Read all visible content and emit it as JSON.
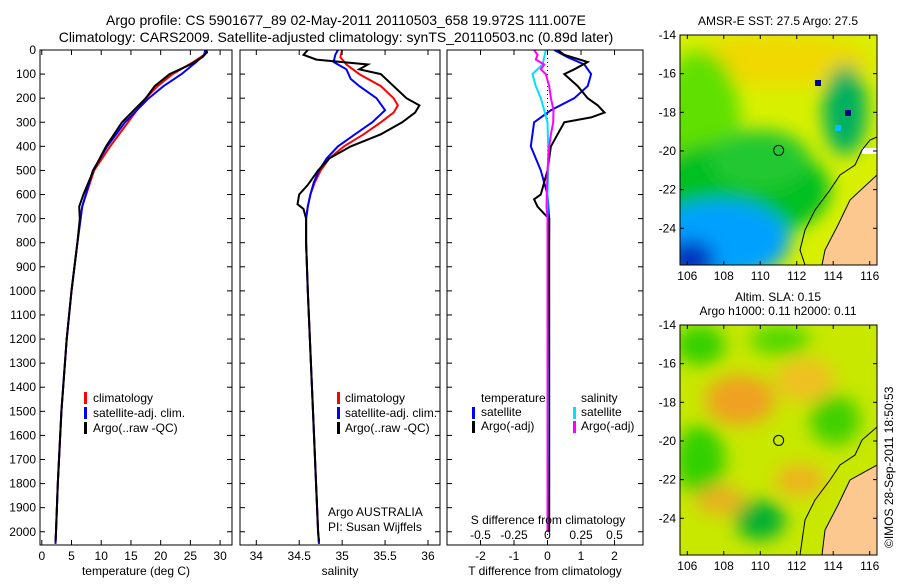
{
  "title": {
    "line1": "Argo profile: CS 5901677_89 02-May-2011 20110503_658 19.972S 111.007E",
    "line2": "Climatology: CARS2009. Satellite-adjusted climatology: synTS_20110503.nc (0.89d later)"
  },
  "credit": "©IMOS 28-Sep-2011 18:50:53",
  "chart_data": [
    {
      "type": "line",
      "id": "temperature",
      "xlabel": "temperature (deg C)",
      "ylabel": "",
      "xlim": [
        -0.3,
        32
      ],
      "ylim": [
        2055,
        0
      ],
      "xticks": [
        0,
        5,
        10,
        15,
        20,
        25,
        30
      ],
      "yticks": [
        0,
        100,
        200,
        300,
        400,
        500,
        600,
        700,
        800,
        900,
        1000,
        1100,
        1200,
        1300,
        1400,
        1500,
        1600,
        1700,
        1800,
        1900,
        2000
      ],
      "legend": [
        "climatology",
        "satellite-adj. clim.",
        "Argo(..raw -QC)"
      ],
      "legend_placement": "lower-center",
      "series": [
        {
          "name": "climatology",
          "color": "#ff0000",
          "depth": [
            0,
            20,
            50,
            100,
            150,
            200,
            250,
            300,
            400,
            500,
            650,
            800,
            1000,
            1200,
            1500,
            1800,
            2000,
            2050
          ],
          "values": [
            27.6,
            27.3,
            25.5,
            22,
            19.5,
            17.5,
            16,
            14.5,
            11.5,
            8.8,
            6.8,
            6,
            5,
            4.2,
            3.3,
            2.7,
            2.4,
            2.3
          ]
        },
        {
          "name": "satellite-adj. clim.",
          "color": "#0000ff",
          "depth": [
            0,
            20,
            50,
            100,
            150,
            200,
            250,
            300,
            400,
            500,
            650,
            800,
            1000,
            1200,
            1500,
            1800,
            2000,
            2050
          ],
          "values": [
            27.5,
            27.3,
            26,
            23.5,
            20.5,
            18,
            16,
            14,
            11,
            8.6,
            6.8,
            6,
            5,
            4.2,
            3.3,
            2.7,
            2.4,
            2.3
          ]
        },
        {
          "name": "Argo(..raw -QC)",
          "color": "#000000",
          "depth": [
            0,
            10,
            30,
            60,
            100,
            150,
            200,
            250,
            300,
            400,
            500,
            600,
            650,
            700,
            800,
            1000,
            1200,
            1500,
            1800,
            2000,
            2040
          ],
          "values": [
            27.7,
            27.8,
            27,
            25,
            21.5,
            19,
            17.5,
            15.5,
            13.5,
            10.8,
            8.7,
            7,
            6.3,
            6.4,
            6,
            5,
            4.2,
            3.3,
            2.7,
            2.4,
            2.3
          ]
        }
      ]
    },
    {
      "type": "line",
      "id": "salinity",
      "xlabel": "salinity",
      "xlim": [
        33.81,
        36.14
      ],
      "ylim": [
        2055,
        0
      ],
      "xticks": [
        34,
        34.5,
        35,
        35.5,
        36
      ],
      "xticklabels": [
        "34",
        "34.5",
        "35",
        "35.5",
        "36"
      ],
      "legend": [
        "climatology",
        "satellite-adj. clim.",
        "Argo(..raw -QC)"
      ],
      "annotation": [
        "Argo AUSTRALIA",
        "PI: Susan Wijffels"
      ],
      "series": [
        {
          "name": "climatology",
          "color": "#ff0000",
          "depth": [
            0,
            30,
            60,
            100,
            150,
            200,
            230,
            260,
            300,
            350,
            400,
            450,
            500,
            550,
            600,
            650,
            700,
            800,
            1000,
            1500,
            2000,
            2050
          ],
          "values": [
            35.0,
            34.98,
            35.05,
            35.2,
            35.45,
            35.6,
            35.65,
            35.6,
            35.45,
            35.25,
            35.02,
            34.85,
            34.75,
            34.68,
            34.63,
            34.6,
            34.58,
            34.58,
            34.6,
            34.66,
            34.72,
            34.73
          ]
        },
        {
          "name": "satellite-adj. clim.",
          "color": "#0000ff",
          "depth": [
            0,
            20,
            50,
            80,
            120,
            150,
            200,
            250,
            300,
            350,
            400,
            450,
            500,
            550,
            600,
            650,
            700,
            800,
            1000,
            1500,
            2000,
            2050
          ],
          "values": [
            34.95,
            34.92,
            34.9,
            35.05,
            35.1,
            35.2,
            35.4,
            35.5,
            35.35,
            35.15,
            34.95,
            34.82,
            34.73,
            34.67,
            34.63,
            34.6,
            34.58,
            34.58,
            34.6,
            34.66,
            34.72,
            34.73
          ]
        },
        {
          "name": "Argo(..raw -QC)",
          "color": "#000000",
          "depth": [
            0,
            20,
            40,
            60,
            80,
            100,
            150,
            200,
            230,
            260,
            300,
            350,
            400,
            450,
            500,
            560,
            600,
            640,
            660,
            700,
            800,
            1000,
            1500,
            2000,
            2040
          ],
          "values": [
            34.6,
            34.55,
            34.7,
            35.3,
            35.2,
            35.45,
            35.6,
            35.75,
            35.9,
            35.85,
            35.7,
            35.45,
            35.1,
            34.85,
            34.72,
            34.6,
            34.5,
            34.48,
            34.55,
            34.58,
            34.58,
            34.6,
            34.66,
            34.72,
            34.73
          ]
        }
      ]
    },
    {
      "type": "line",
      "id": "difference",
      "xlabel": "T difference from climatology",
      "xlabel2": "S difference from climatology",
      "xlim": [
        -3.0,
        2.85
      ],
      "xticks": [
        -2,
        -1,
        0,
        1,
        2
      ],
      "xticklabels": [
        "-2",
        "-1",
        "0",
        "1",
        "2"
      ],
      "s_xticklabels": [
        "-0.5",
        "-0.25",
        "0",
        "0.25",
        "0.5"
      ],
      "s_scale_note": "S axis = T axis / 4",
      "legend_temperature": {
        "title": "temperature",
        "items": [
          "satellite",
          "Argo(-adj)"
        ]
      },
      "legend_salinity": {
        "title": "salinity",
        "items": [
          "satellite",
          "Argo(-adj)"
        ]
      },
      "series": [
        {
          "name": "T satellite",
          "color": "#0000ff",
          "depth": [
            0,
            30,
            60,
            100,
            150,
            200,
            250,
            300,
            400,
            500,
            600,
            700,
            1000,
            1500,
            2000
          ],
          "values": [
            0.2,
            0.6,
            1.1,
            1.3,
            1.2,
            0.8,
            0.1,
            -0.4,
            -0.5,
            -0.2,
            0,
            0.05,
            0.03,
            0.04,
            0.03
          ]
        },
        {
          "name": "T Argo(-adj)",
          "color": "#000000",
          "depth": [
            0,
            20,
            50,
            80,
            100,
            150,
            200,
            230,
            260,
            280,
            300,
            350,
            400,
            500,
            600,
            620,
            650,
            680,
            700,
            800,
            1000,
            1500,
            2000
          ],
          "values": [
            0.3,
            0.5,
            1.2,
            0.8,
            0.5,
            0.9,
            1.2,
            1.5,
            1.7,
            1.3,
            0.5,
            0.3,
            0.1,
            0,
            -0.2,
            -0.4,
            -0.3,
            -0.1,
            0.05,
            0.05,
            0.05,
            0.05,
            0.05
          ]
        },
        {
          "name": "S satellite",
          "color": "#00e0ff",
          "depth": [
            0,
            30,
            60,
            100,
            150,
            200,
            250,
            300,
            400,
            500,
            600,
            700,
            1000,
            1500,
            2000
          ],
          "values": [
            -0.05,
            -0.1,
            -0.15,
            -0.45,
            -0.35,
            -0.2,
            -0.1,
            0,
            0.02,
            0.02,
            0,
            0,
            0,
            0.01,
            0
          ]
        },
        {
          "name": "S Argo(-adj)",
          "color": "#ff00ff",
          "depth": [
            0,
            20,
            40,
            60,
            80,
            100,
            150,
            200,
            250,
            300,
            350,
            400,
            500,
            600,
            650,
            700,
            800,
            1000,
            1500,
            2000
          ],
          "values": [
            -0.4,
            -0.3,
            -0.35,
            -0.1,
            -0.2,
            -0.05,
            0.05,
            0.1,
            0.18,
            0.17,
            0.1,
            0.05,
            0,
            -0.02,
            -0.03,
            0,
            0,
            0,
            0,
            0
          ]
        }
      ]
    },
    {
      "type": "heatmap",
      "id": "sst-map",
      "title": "AMSR-E SST: 27.5 Argo: 27.5",
      "xlim": [
        105.6,
        116.4
      ],
      "ylim": [
        -25.9,
        -14
      ],
      "xticks": [
        106,
        108,
        110,
        112,
        114,
        116
      ],
      "yticks": [
        -14,
        -16,
        -18,
        -20,
        -22,
        -24
      ],
      "marker": {
        "lon": 111.007,
        "lat": -19.972
      }
    },
    {
      "type": "heatmap",
      "id": "sla-map",
      "title": "Altim. SLA: 0.15",
      "subtitle": "Argo h1000: 0.11 h2000: 0.11",
      "xlim": [
        105.6,
        116.4
      ],
      "ylim": [
        -25.9,
        -14
      ],
      "xticks": [
        106,
        108,
        110,
        112,
        114,
        116
      ],
      "yticks": [
        -14,
        -16,
        -18,
        -20,
        -22,
        -24
      ],
      "marker": {
        "lon": 111.007,
        "lat": -19.972
      }
    }
  ]
}
